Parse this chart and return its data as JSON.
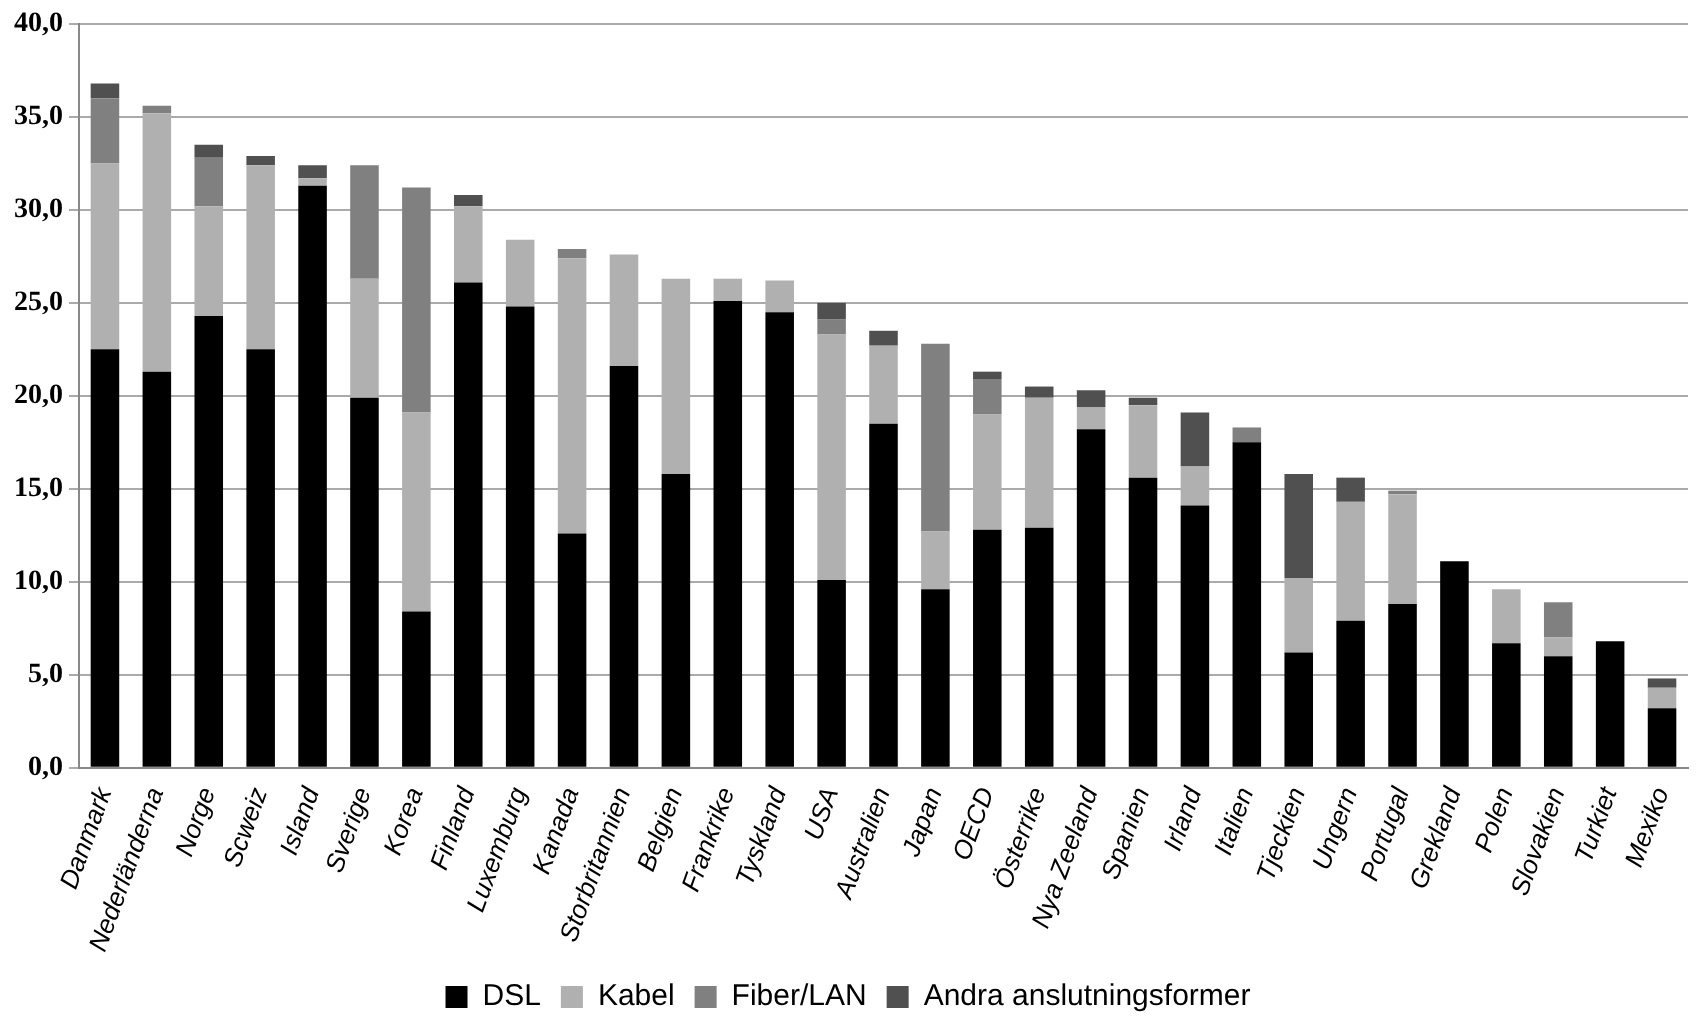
{
  "chart_data": {
    "type": "bar",
    "stacked": true,
    "categories": [
      "Danmark",
      "Nederländerna",
      "Norge",
      "Scweiz",
      "Island",
      "Sverige",
      "Korea",
      "Finland",
      "Luxemburg",
      "Kanada",
      "Storbritannien",
      "Belgien",
      "Frankrike",
      "Tyskland",
      "USA",
      "Australien",
      "Japan",
      "OECD",
      "Österrike",
      "Nya Zeeland",
      "Spanien",
      "Irland",
      "Italien",
      "Tjeckien",
      "Ungern",
      "Portugal",
      "Grekland",
      "Polen",
      "Slovakien",
      "Turkiet",
      "Mexiko"
    ],
    "series": [
      {
        "name": "DSL",
        "color": "#000000",
        "values": [
          22.5,
          21.3,
          24.3,
          22.5,
          31.3,
          19.9,
          8.4,
          26.1,
          24.8,
          12.6,
          21.6,
          15.8,
          25.1,
          24.5,
          10.1,
          18.5,
          9.6,
          12.8,
          12.9,
          18.2,
          15.6,
          14.1,
          17.5,
          6.2,
          7.9,
          8.8,
          11.1,
          6.7,
          6.0,
          6.8,
          3.2
        ]
      },
      {
        "name": "Kabel",
        "color": "#b0b0b0",
        "values": [
          10.0,
          13.9,
          5.9,
          9.9,
          0.4,
          6.4,
          10.7,
          4.1,
          3.6,
          14.8,
          6.0,
          10.5,
          1.2,
          1.7,
          13.2,
          4.2,
          3.1,
          6.2,
          7.0,
          1.2,
          3.9,
          2.1,
          0,
          4.0,
          6.4,
          5.9,
          0,
          2.9,
          1.0,
          0,
          1.1
        ]
      },
      {
        "name": "Fiber/LAN",
        "color": "#808080",
        "values": [
          3.5,
          0.4,
          2.6,
          0,
          0,
          6.1,
          12.1,
          0,
          0,
          0.5,
          0,
          0,
          0,
          0,
          0.8,
          0,
          10.1,
          1.9,
          0,
          0,
          0,
          0,
          0.8,
          0,
          0,
          0.2,
          0,
          0,
          1.9,
          0,
          0
        ]
      },
      {
        "name": "Andra anslutningsformer",
        "color": "#505050",
        "values": [
          0.8,
          0,
          0.7,
          0.5,
          0.7,
          0,
          0,
          0.6,
          0,
          0,
          0,
          0,
          0,
          0,
          0.9,
          0.8,
          0,
          0.4,
          0.6,
          0.9,
          0.4,
          2.9,
          0,
          5.6,
          1.3,
          0,
          0,
          0,
          0,
          0,
          0.5
        ]
      }
    ],
    "ylim": [
      0,
      40
    ],
    "yticks": [
      {
        "value": 0,
        "label": "0,0"
      },
      {
        "value": 5,
        "label": "5,0"
      },
      {
        "value": 10,
        "label": "10,0"
      },
      {
        "value": 15,
        "label": "15,0"
      },
      {
        "value": 20,
        "label": "20,0"
      },
      {
        "value": 25,
        "label": "25,0"
      },
      {
        "value": 30,
        "label": "30,0"
      },
      {
        "value": 35,
        "label": "35,0"
      },
      {
        "value": 40,
        "label": "40,0"
      }
    ],
    "grid": "y",
    "legend": "bottom"
  }
}
